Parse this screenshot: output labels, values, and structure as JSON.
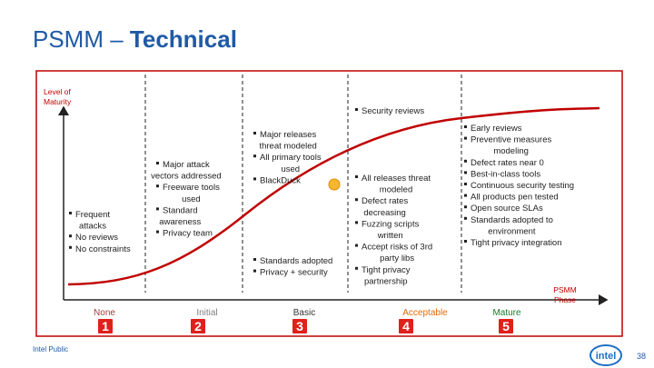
{
  "header": {
    "title_regular": "PSMM – ",
    "title_bold": "Technical"
  },
  "axes": {
    "y_label": [
      "Level of",
      "Maturity"
    ],
    "x_label": [
      "PSMM",
      "Phase"
    ]
  },
  "phases": [
    {
      "label": "None",
      "number": "1",
      "bullets": [
        [
          "Frequent",
          "attacks"
        ],
        [
          "No reviews"
        ],
        [
          "No constraints"
        ]
      ]
    },
    {
      "label": "Initial",
      "number": "2",
      "bullets": [
        [
          "Major attack",
          "vectors addressed"
        ],
        [
          "Freeware tools",
          "used"
        ],
        [
          "Standard",
          "awareness"
        ],
        [
          "Privacy team"
        ]
      ]
    },
    {
      "label": "Basic",
      "number": "3",
      "bullets": [
        [
          "Major releases",
          "threat modeled"
        ],
        [
          "All primary tools",
          "used"
        ],
        [
          "BlackDuck"
        ]
      ],
      "bullets_lower": [
        [
          "Standards adopted"
        ],
        [
          "Privacy + security"
        ]
      ]
    },
    {
      "label": "Acceptable",
      "number": "4",
      "bullets_top": [
        [
          "Security reviews"
        ]
      ],
      "bullets": [
        [
          "All releases threat",
          "modeled"
        ],
        [
          "Defect rates",
          "decreasing"
        ],
        [
          "Fuzzing scripts",
          "written"
        ],
        [
          "Accept risks of 3rd",
          "party libs"
        ],
        [
          "Tight privacy",
          "partnership"
        ]
      ]
    },
    {
      "label": "Mature",
      "number": "5",
      "bullets": [
        [
          "Early reviews"
        ],
        [
          "Preventive measures",
          "modeling"
        ],
        [
          "Defect rates near 0"
        ],
        [
          "Best-in-class tools"
        ],
        [
          "Continuous security testing"
        ],
        [
          "All products pen tested"
        ],
        [
          "Open source SLAs"
        ],
        [
          "Standards adopted to",
          "environment"
        ],
        [
          "Tight privacy integration"
        ]
      ]
    }
  ],
  "footer": {
    "classification": "Intel Public",
    "logo": "intel",
    "page": "38"
  }
}
